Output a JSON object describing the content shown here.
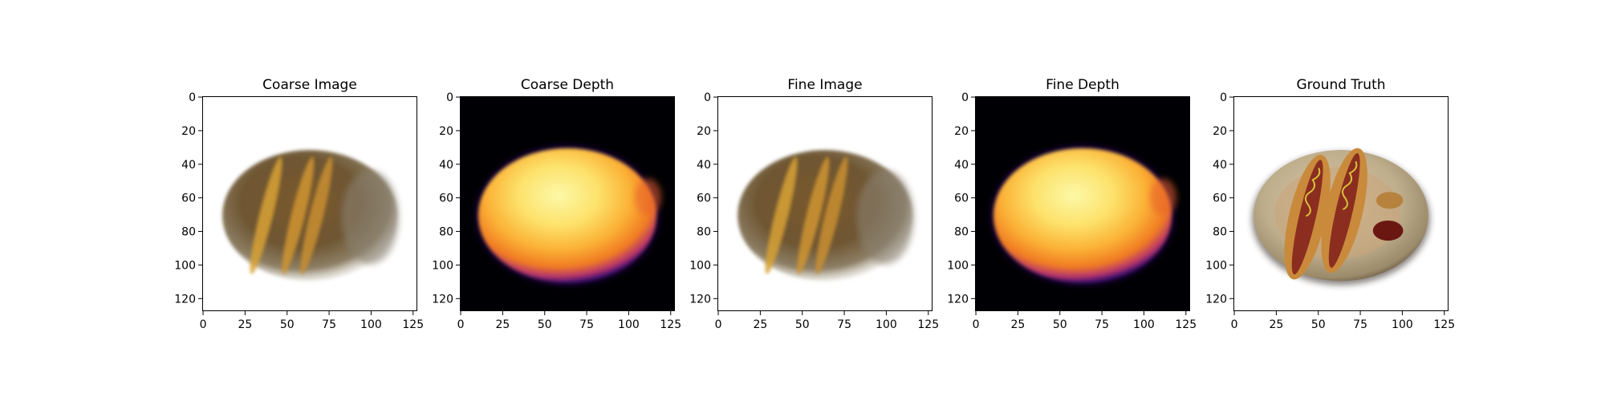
{
  "chart_data": {
    "type": "image",
    "panels": [
      {
        "title": "Coarse Image",
        "kind": "rgb-render",
        "xlim": [
          0,
          128
        ],
        "ylim": [
          128,
          0
        ],
        "xticks": [
          0,
          25,
          50,
          75,
          100,
          125
        ],
        "yticks": [
          0,
          20,
          40,
          60,
          80,
          100,
          120
        ],
        "object": {
          "cx": 64,
          "cy": 71,
          "rx": 52,
          "ry": 39
        },
        "background": "#ffffff"
      },
      {
        "title": "Coarse Depth",
        "kind": "depth-map",
        "colormap": "inferno",
        "xlim": [
          0,
          128
        ],
        "ylim": [
          128,
          0
        ],
        "xticks": [
          0,
          25,
          50,
          75,
          100,
          125
        ],
        "yticks": [
          0,
          20,
          40,
          60,
          80,
          100,
          120
        ],
        "object": {
          "cx": 64,
          "cy": 71,
          "rx": 53,
          "ry": 40
        },
        "background": "#000004"
      },
      {
        "title": "Fine Image",
        "kind": "rgb-render",
        "xlim": [
          0,
          128
        ],
        "ylim": [
          128,
          0
        ],
        "xticks": [
          0,
          25,
          50,
          75,
          100,
          125
        ],
        "yticks": [
          0,
          20,
          40,
          60,
          80,
          100,
          120
        ],
        "object": {
          "cx": 64,
          "cy": 71,
          "rx": 52,
          "ry": 39
        },
        "background": "#ffffff"
      },
      {
        "title": "Fine Depth",
        "kind": "depth-map",
        "colormap": "inferno",
        "xlim": [
          0,
          128
        ],
        "ylim": [
          128,
          0
        ],
        "xticks": [
          0,
          25,
          50,
          75,
          100,
          125
        ],
        "yticks": [
          0,
          20,
          40,
          60,
          80,
          100,
          120
        ],
        "object": {
          "cx": 64,
          "cy": 71,
          "rx": 53,
          "ry": 40
        },
        "background": "#000004"
      },
      {
        "title": "Ground Truth",
        "kind": "ground-truth",
        "xlim": [
          0,
          128
        ],
        "ylim": [
          128,
          0
        ],
        "xticks": [
          0,
          25,
          50,
          75,
          100,
          125
        ],
        "yticks": [
          0,
          20,
          40,
          60,
          80,
          100,
          120
        ],
        "object": {
          "cx": 64,
          "cy": 71,
          "rx": 52,
          "ry": 39
        },
        "background": "#ffffff"
      }
    ]
  }
}
